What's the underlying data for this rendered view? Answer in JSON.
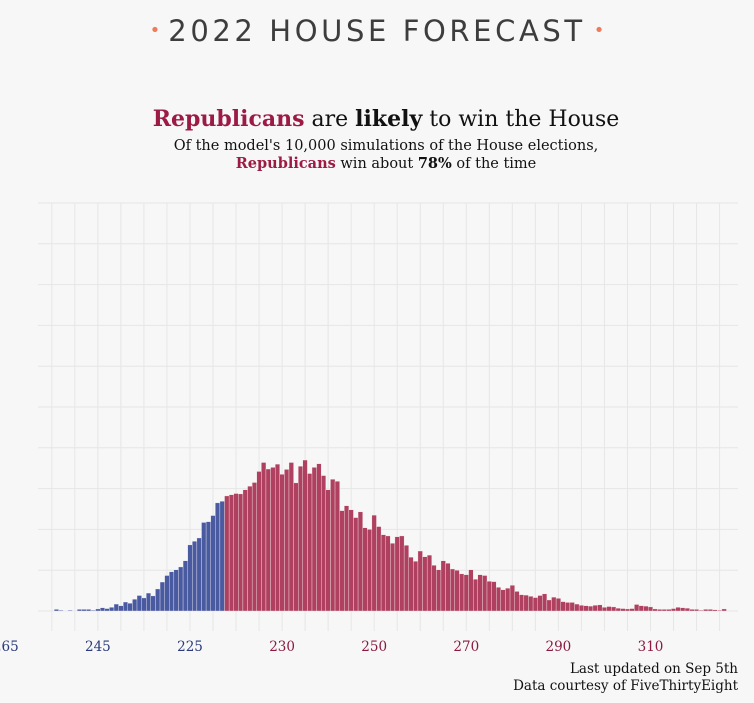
{
  "header": {
    "title": "2022 HOUSE FORECAST",
    "dot": "•"
  },
  "headline": {
    "party": "Republicans",
    "are": "are",
    "likely": "likely",
    "rest": "to win the House"
  },
  "subtitle": {
    "line1": "Of the model's 10,000 simulations of the House elections,",
    "party": "Republicans",
    "mid": "win about",
    "pct": "78%",
    "end": "of the time"
  },
  "footer": {
    "updated": "Last updated on Sep 5th",
    "credit": "Data courtesy of FiveThirtyEight"
  },
  "colors": {
    "dem": "#4a5aa1",
    "rep": "#b0405f",
    "dem_text": "#2a3a7a",
    "rep_text": "#8a1a3f",
    "grid": "#e6e6e6",
    "background": "#f7f7f7",
    "accent": "#ee7b5c"
  },
  "chart_data": {
    "type": "bar",
    "x_axis": {
      "ticks": [
        {
          "label": "265",
          "side": "dem"
        },
        {
          "label": "245",
          "side": "dem"
        },
        {
          "label": "225",
          "side": "dem"
        },
        {
          "label": "230",
          "side": "rep"
        },
        {
          "label": "250",
          "side": "rep"
        },
        {
          "label": "270",
          "side": "rep"
        },
        {
          "label": "290",
          "side": "rep"
        },
        {
          "label": "310",
          "side": "rep"
        }
      ]
    },
    "x_domain_rep_seats": [
      177,
      329
    ],
    "majority_threshold_rep_seats": 218,
    "ylim": [
      0,
      100
    ],
    "grid": true,
    "series": [
      {
        "side": "dem",
        "x_rep_seats": [
          181,
          182,
          183,
          184,
          185,
          186,
          187,
          188,
          189,
          190,
          191,
          192,
          193,
          194,
          195,
          196,
          197,
          198,
          199,
          200,
          201,
          202,
          203,
          204,
          205,
          206,
          207,
          208,
          209,
          210,
          211,
          212,
          213,
          214,
          215,
          216,
          217
        ],
        "values": [
          0.4,
          0.2,
          0.1,
          0.2,
          0.1,
          0.4,
          0.4,
          0.4,
          0.2,
          0.5,
          0.8,
          0.6,
          0.9,
          1.7,
          1.3,
          2.2,
          1.9,
          2.9,
          3.8,
          3.2,
          4.4,
          3.7,
          5.4,
          7.1,
          8.7,
          9.6,
          10.1,
          10.8,
          12.3,
          16.2,
          17.1,
          17.9,
          21.7,
          21.9,
          23.4,
          26.5,
          26.9
        ]
      },
      {
        "side": "rep",
        "x_rep_seats": [
          218,
          219,
          220,
          221,
          222,
          223,
          224,
          225,
          226,
          227,
          228,
          229,
          230,
          231,
          232,
          233,
          234,
          235,
          236,
          237,
          238,
          239,
          240,
          241,
          242,
          243,
          244,
          245,
          246,
          247,
          248,
          249,
          250,
          251,
          252,
          253,
          254,
          255,
          256,
          257,
          258,
          259,
          260,
          261,
          262,
          263,
          264,
          265,
          266,
          267,
          268,
          269,
          270,
          271,
          272,
          273,
          274,
          275,
          276,
          277,
          278,
          279,
          280,
          281,
          282,
          283,
          284,
          285,
          286,
          287,
          288,
          289,
          290,
          291,
          292,
          293,
          294,
          295,
          296,
          297,
          298,
          299,
          300,
          301,
          302,
          303,
          304,
          305,
          306,
          307,
          308,
          309,
          310,
          311,
          312,
          313,
          314,
          315,
          316,
          317,
          318,
          319,
          320,
          321,
          322,
          323,
          324,
          325,
          326
        ],
        "values": [
          28.2,
          28.5,
          28.8,
          28.7,
          29.7,
          30.6,
          31.5,
          34.2,
          36.4,
          34.8,
          35.2,
          36.0,
          33.5,
          34.7,
          36.4,
          31.4,
          35.5,
          37.0,
          33.7,
          35.2,
          36.1,
          33.2,
          29.7,
          32.3,
          31.8,
          24.6,
          25.8,
          24.8,
          22.9,
          24.3,
          20.4,
          20.0,
          23.5,
          20.7,
          18.7,
          18.4,
          16.6,
          18.2,
          18.4,
          16.1,
          13.2,
          12.2,
          14.7,
          13.3,
          13.7,
          11.2,
          10.1,
          12.3,
          11.7,
          10.3,
          10.0,
          9.1,
          8.9,
          10.1,
          7.8,
          8.9,
          8.7,
          7.3,
          7.2,
          5.8,
          5.2,
          5.6,
          6.3,
          4.8,
          4.0,
          3.9,
          3.6,
          3.3,
          3.8,
          4.2,
          2.7,
          3.4,
          3.1,
          2.3,
          2.1,
          2.1,
          1.7,
          1.4,
          1.3,
          1.2,
          1.4,
          1.5,
          0.9,
          1.1,
          1.0,
          0.7,
          0.6,
          0.5,
          0.6,
          1.6,
          1.3,
          1.2,
          1.0,
          0.5,
          0.4,
          0.4,
          0.4,
          0.6,
          0.9,
          0.8,
          0.7,
          0.4,
          0.4,
          0.2,
          0.4,
          0.4,
          0.3,
          0.2,
          0.5
        ]
      }
    ]
  }
}
